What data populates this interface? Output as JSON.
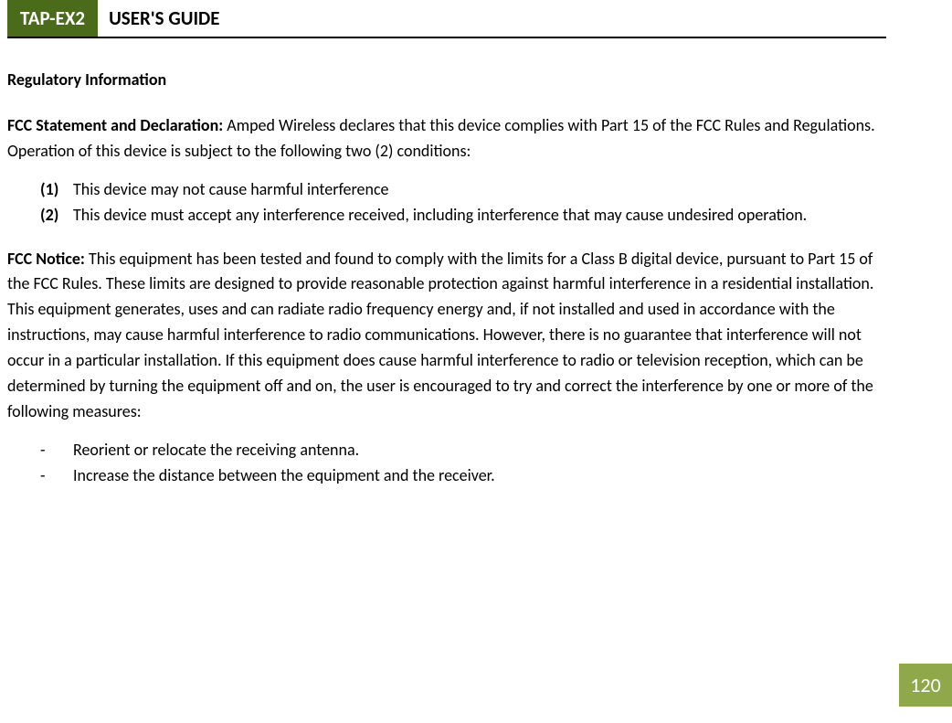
{
  "header": {
    "badge": "TAP-EX2",
    "title": "USER'S GUIDE",
    "badge_bg": "#4a6b1a",
    "badge_fg": "#ffffff"
  },
  "section_heading": "Regulatory Information",
  "fcc_statement": {
    "label": "FCC Statement and Declaration: ",
    "text": "Amped Wireless declares that this device complies with Part 15 of the FCC Rules and Regulations.  Operation of this device is subject to the following two (2) conditions:"
  },
  "conditions": [
    {
      "marker": "(1)",
      "text": "This device may not cause harmful interference"
    },
    {
      "marker": "(2)",
      "text": "This device must accept any interference received, including interference that may cause undesired operation."
    }
  ],
  "fcc_notice": {
    "label": "FCC Notice: ",
    "text": "This equipment has been tested and found to comply with the limits for a Class B digital device, pursuant to Part 15 of the FCC Rules.  These limits are designed to provide reasonable protection against harmful interference in a residential installation.  This equipment generates, uses and can radiate radio frequency energy and, if not installed and used in accordance with the instructions, may cause harmful interference to radio communications.  However, there is no guarantee that interference will not occur in a particular installation.  If this equipment does cause harmful interference to radio or television reception, which can be determined by turning the equipment off and on, the user is encouraged to try and correct the interference by one or more of the following measures:"
  },
  "measures": [
    {
      "marker": "-",
      "text": "Reorient or relocate the receiving antenna."
    },
    {
      "marker": "-",
      "text": "Increase the distance between the equipment and the receiver."
    }
  ],
  "page_number": {
    "value": "120",
    "bg": "#8fa84a",
    "fg": "#ffffff"
  }
}
